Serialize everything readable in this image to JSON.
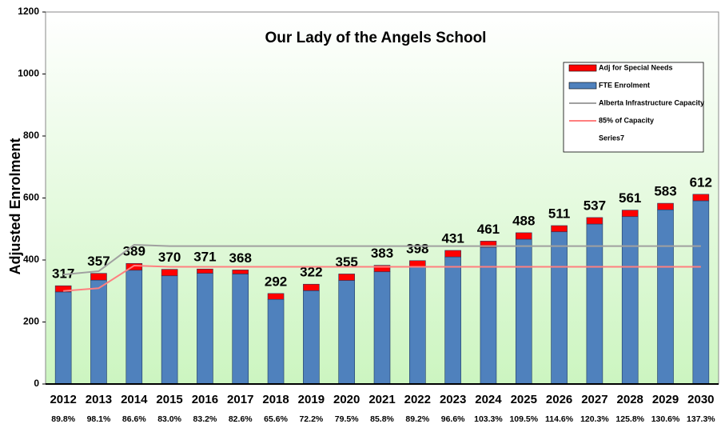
{
  "chart_data": {
    "type": "bar",
    "title": "Our Lady of the Angels School",
    "y_label": "Adjusted Enrolment",
    "categories": [
      "2012",
      "2013",
      "2014",
      "2015",
      "2016",
      "2017",
      "2018",
      "2019",
      "2020",
      "2021",
      "2022",
      "2023",
      "2024",
      "2025",
      "2026",
      "2027",
      "2028",
      "2029",
      "2030"
    ],
    "utilization_labels": [
      "89.8%",
      "98.1%",
      "86.6%",
      "83.0%",
      "83.2%",
      "82.6%",
      "65.6%",
      "72.2%",
      "79.5%",
      "85.8%",
      "89.2%",
      "96.6%",
      "103.3%",
      "109.5%",
      "114.6%",
      "120.3%",
      "125.8%",
      "130.6%",
      "137.3%"
    ],
    "totals": [
      317,
      357,
      389,
      370,
      371,
      368,
      292,
      322,
      355,
      383,
      398,
      431,
      461,
      488,
      511,
      537,
      561,
      583,
      612
    ],
    "series": [
      {
        "name": "Adj for Special Needs",
        "kind": "stack",
        "color": "#ff0000",
        "values": [
          20,
          22,
          22,
          21,
          14,
          13,
          19,
          21,
          21,
          21,
          21,
          21,
          20,
          21,
          20,
          21,
          21,
          21,
          21
        ]
      },
      {
        "name": "FTE Enrolment",
        "kind": "stack",
        "color": "#4f81bd",
        "values": [
          297,
          335,
          367,
          349,
          357,
          355,
          273,
          301,
          334,
          362,
          377,
          410,
          441,
          467,
          491,
          516,
          540,
          562,
          591
        ]
      },
      {
        "name": "Alberta Infrastructure Capacity",
        "kind": "line",
        "color": "#a0a0a0",
        "values": [
          353,
          364,
          449,
          445,
          445,
          445,
          445,
          445,
          445,
          445,
          445,
          445,
          445,
          445,
          445,
          445,
          445,
          445,
          445
        ]
      },
      {
        "name": "85% of Capacity",
        "kind": "line",
        "color": "#ff7f7f",
        "values": [
          300,
          309,
          382,
          378,
          378,
          378,
          378,
          378,
          378,
          378,
          378,
          378,
          378,
          378,
          378,
          378,
          378,
          378,
          378
        ]
      },
      {
        "name": "Series7",
        "kind": "none"
      }
    ],
    "ylim": [
      0,
      1200
    ],
    "yticks": [
      0,
      200,
      400,
      600,
      800,
      1000,
      1200
    ],
    "grid": false
  }
}
